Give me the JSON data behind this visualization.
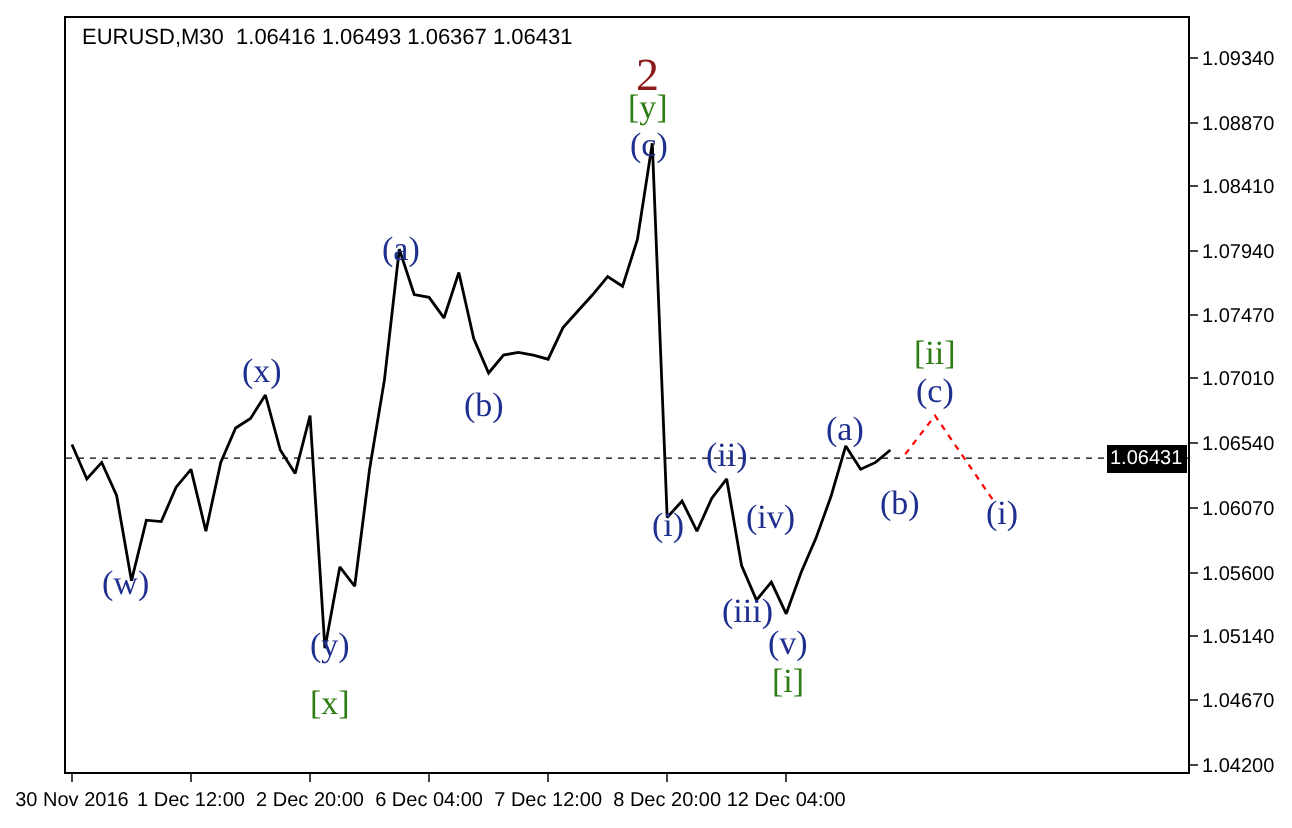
{
  "chart_data": {
    "type": "line",
    "title": "EURUSD,M30  1.06416 1.06493 1.06367 1.06431",
    "categories": [
      "30 Nov 2016",
      null,
      null,
      null,
      null,
      null,
      null,
      null,
      "1 Dec 12:00",
      null,
      null,
      null,
      null,
      null,
      null,
      null,
      "2 Dec 20:00",
      null,
      null,
      null,
      null,
      null,
      null,
      null,
      "6 Dec 04:00",
      null,
      null,
      null,
      null,
      null,
      null,
      null,
      "7 Dec 12:00",
      null,
      null,
      null,
      null,
      null,
      null,
      null,
      "8 Dec 20:00",
      null,
      null,
      null,
      null,
      null,
      null,
      null,
      "12 Dec 04:00",
      null,
      null,
      null,
      null,
      null,
      null,
      null,
      null,
      null,
      null,
      null,
      null,
      null,
      null,
      null,
      null,
      null,
      null,
      null,
      null,
      null,
      null,
      null,
      null,
      null,
      null,
      null
    ],
    "ylim": [
      1.0415,
      1.0963
    ],
    "yticks": [
      {
        "value": 1.042,
        "label": "1.04200"
      },
      {
        "value": 1.0467,
        "label": "1.04670"
      },
      {
        "value": 1.0514,
        "label": "1.05140"
      },
      {
        "value": 1.056,
        "label": "1.05600"
      },
      {
        "value": 1.0607,
        "label": "1.06070"
      },
      {
        "value": 1.0654,
        "label": "1.06540"
      },
      {
        "value": 1.0701,
        "label": "1.07010"
      },
      {
        "value": 1.0747,
        "label": "1.07470"
      },
      {
        "value": 1.0794,
        "label": "1.07940"
      },
      {
        "value": 1.0841,
        "label": "1.08410"
      },
      {
        "value": 1.0887,
        "label": "1.08870"
      },
      {
        "value": 1.0934,
        "label": "1.09340"
      }
    ],
    "series": [
      {
        "color": "#000000",
        "line_style": "solid",
        "values": [
          1.0653,
          1.0628,
          1.064,
          1.0616,
          1.0554,
          1.0598,
          1.0597,
          1.0622,
          1.0635,
          1.059,
          1.064,
          1.0665,
          1.0672,
          1.0689,
          1.0649,
          1.0632,
          1.0674,
          1.0505,
          1.0564,
          1.055,
          1.0635,
          1.07,
          1.0795,
          1.0762,
          1.076,
          1.0745,
          1.0778,
          1.073,
          1.0705,
          1.0718,
          1.072,
          1.0718,
          1.0715,
          1.0738,
          1.075,
          1.0762,
          1.0775,
          1.0768,
          1.0802,
          1.0872,
          1.06,
          1.0612,
          1.059,
          1.0614,
          1.0628,
          1.0565,
          1.054,
          1.0553,
          1.053,
          1.056,
          1.0585,
          1.0615,
          1.0652,
          1.0635,
          1.064,
          1.0649,
          null,
          null,
          null,
          null,
          null,
          null,
          null,
          null,
          null,
          null,
          null,
          null,
          null,
          null,
          null,
          null,
          null,
          null,
          null,
          null
        ]
      },
      {
        "color": "#ff0000",
        "line_style": "dotted",
        "values": [
          null,
          null,
          null,
          null,
          null,
          null,
          null,
          null,
          null,
          null,
          null,
          null,
          null,
          null,
          null,
          null,
          null,
          null,
          null,
          null,
          null,
          null,
          null,
          null,
          null,
          null,
          null,
          null,
          null,
          null,
          null,
          null,
          null,
          null,
          null,
          null,
          null,
          null,
          null,
          null,
          null,
          null,
          null,
          null,
          null,
          null,
          null,
          null,
          null,
          null,
          null,
          null,
          null,
          null,
          null,
          null,
          1.0646,
          null,
          1.0674,
          null,
          null,
          null,
          1.0611,
          null,
          null,
          null,
          null,
          null,
          null,
          null,
          null,
          null,
          null,
          null,
          null,
          null
        ]
      }
    ],
    "ref_lines": [
      {
        "axis": "y",
        "value": 1.06431,
        "label": "1.06431",
        "color": "#000000",
        "line_style": "dotted"
      }
    ],
    "annotations": [
      "2",
      "[y]",
      "(c)",
      "(a)",
      "(x)",
      "(b)",
      "(w)",
      "(y)",
      "[x]",
      "(i)",
      "(ii)",
      "(iv)",
      "(iii)",
      "(v)",
      "[i]",
      "(a)",
      "(b)",
      "[ii]",
      "(c)",
      "(i)"
    ]
  }
}
